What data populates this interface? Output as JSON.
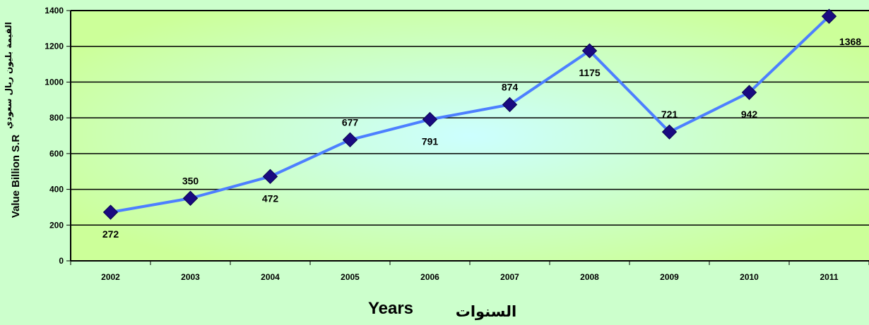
{
  "chart_data": {
    "type": "line",
    "categories": [
      "2002",
      "2003",
      "2004",
      "2005",
      "2006",
      "2007",
      "2008",
      "2009",
      "2010",
      "2011"
    ],
    "values": [
      272,
      350,
      472,
      677,
      791,
      874,
      1175,
      721,
      942,
      1368
    ],
    "data_labels": [
      "272",
      "350",
      "472",
      "677",
      "791",
      "874",
      "1175",
      "721",
      "942",
      "1368"
    ],
    "ylim": [
      0,
      1400
    ],
    "yticks": [
      "0",
      "200",
      "400",
      "600",
      "800",
      "1000",
      "1200",
      "1400"
    ],
    "ylabel": "Value Billion S.R",
    "ylabel_ar": "القيمة بليون ريال سعودي",
    "xlabel": "Years",
    "xlabel_ar": "السنوات",
    "grid": true,
    "colors": {
      "page_background": "#ccffcc",
      "plot_center": "#ccffff",
      "plot_edge": "#ccff99",
      "line": "#4d7fff",
      "marker": "#1a0a80"
    }
  }
}
